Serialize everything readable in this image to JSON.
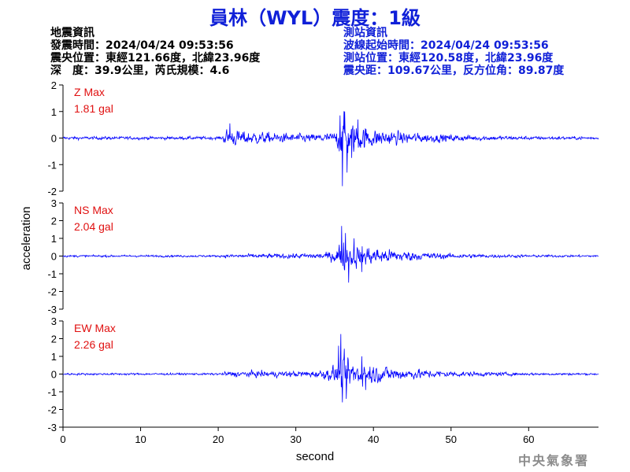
{
  "title": "員林（WYL）震度：1級",
  "earthquake_info": {
    "heading": "地震資訊",
    "time": "發震時間：2024/04/24 09:53:56",
    "location": "震央位置：東經121.66度，北緯23.96度",
    "depth_magnitude": "深　度：39.9公里，芮氏規模：4.6"
  },
  "station_info": {
    "heading": "測站資訊",
    "wave_start": "波線起始時間：2024/04/24 09:53:56",
    "location": "測站位置：東經120.58度，北緯23.96度",
    "distance_azimuth": "震央距：109.67公里，反方位角：89.87度"
  },
  "agency": "中央氣象署",
  "colors": {
    "trace": "#0000ff",
    "title": "#1020d8",
    "label": "#e01010",
    "axis": "#000000",
    "agency": "#8c8c8c"
  },
  "chart_data": {
    "type": "line",
    "xlabel": "second",
    "ylabel": "acceleration",
    "xlim": [
      0,
      69
    ],
    "x_ticks": [
      0,
      10,
      20,
      30,
      40,
      50,
      60
    ],
    "grid": false,
    "sample_interval_s": 0.05,
    "panels": [
      {
        "name": "Z Max",
        "max_value": "1.81 gal",
        "ylim": [
          -2,
          2
        ],
        "y_ticks": [
          2,
          1,
          0,
          -1,
          -2
        ],
        "envelope": [
          [
            0,
            0.07
          ],
          [
            20.5,
            0.07
          ],
          [
            21,
            0.4
          ],
          [
            24,
            0.3
          ],
          [
            28,
            0.22
          ],
          [
            32,
            0.18
          ],
          [
            35,
            0.25
          ],
          [
            35.8,
            0.8
          ],
          [
            36.2,
            1.0
          ],
          [
            37,
            0.75
          ],
          [
            38.5,
            0.55
          ],
          [
            40,
            0.42
          ],
          [
            43,
            0.3
          ],
          [
            46,
            0.22
          ],
          [
            50,
            0.16
          ],
          [
            55,
            0.11
          ],
          [
            60,
            0.08
          ],
          [
            69,
            0.07
          ]
        ],
        "peaks": [
          [
            36.0,
            -1.81
          ],
          [
            36.3,
            1.0
          ],
          [
            35.7,
            0.85
          ],
          [
            37.2,
            -0.75
          ],
          [
            21.5,
            0.55
          ],
          [
            38.0,
            0.7
          ],
          [
            36.6,
            -1.3
          ]
        ]
      },
      {
        "name": "NS Max",
        "max_value": "2.04 gal",
        "ylim": [
          -3,
          3
        ],
        "y_ticks": [
          3,
          2,
          1,
          0,
          -1,
          -2,
          -3
        ],
        "envelope": [
          [
            0,
            0.07
          ],
          [
            20.5,
            0.07
          ],
          [
            21,
            0.12
          ],
          [
            26,
            0.15
          ],
          [
            30,
            0.17
          ],
          [
            34,
            0.25
          ],
          [
            35,
            0.45
          ],
          [
            35.8,
            1.0
          ],
          [
            36.5,
            1.0
          ],
          [
            38,
            0.75
          ],
          [
            40,
            0.6
          ],
          [
            43,
            0.4
          ],
          [
            46,
            0.28
          ],
          [
            50,
            0.17
          ],
          [
            55,
            0.12
          ],
          [
            60,
            0.09
          ],
          [
            69,
            0.07
          ]
        ],
        "peaks": [
          [
            35.9,
            -2.04
          ],
          [
            35.9,
            1.7
          ],
          [
            36.4,
            1.3
          ],
          [
            36.8,
            -1.5
          ],
          [
            37.5,
            1.0
          ],
          [
            38.5,
            -0.9
          ]
        ]
      },
      {
        "name": "EW Max",
        "max_value": "2.26 gal",
        "ylim": [
          -3,
          3
        ],
        "y_ticks": [
          3,
          2,
          1,
          0,
          -1,
          -2,
          -3
        ],
        "envelope": [
          [
            0,
            0.07
          ],
          [
            20.5,
            0.07
          ],
          [
            21,
            0.18
          ],
          [
            25,
            0.22
          ],
          [
            28,
            0.2
          ],
          [
            32,
            0.22
          ],
          [
            34,
            0.35
          ],
          [
            35.5,
            0.8
          ],
          [
            36.2,
            1.2
          ],
          [
            37.5,
            0.9
          ],
          [
            39,
            0.75
          ],
          [
            41,
            0.55
          ],
          [
            44,
            0.4
          ],
          [
            47,
            0.28
          ],
          [
            50,
            0.2
          ],
          [
            55,
            0.13
          ],
          [
            60,
            0.09
          ],
          [
            69,
            0.07
          ]
        ],
        "peaks": [
          [
            35.8,
            2.26
          ],
          [
            36.0,
            -1.6
          ],
          [
            35.5,
            1.6
          ],
          [
            36.5,
            -1.4
          ],
          [
            38.5,
            1.0
          ],
          [
            39.0,
            -0.9
          ]
        ]
      }
    ]
  }
}
